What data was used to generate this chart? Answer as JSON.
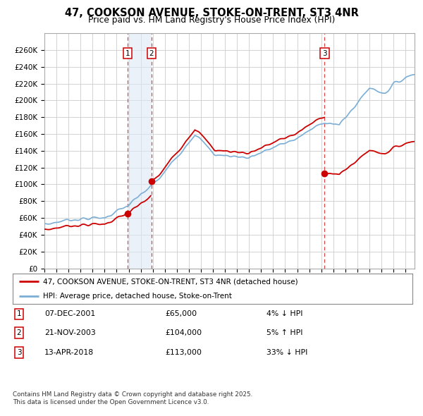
{
  "title": "47, COOKSON AVENUE, STOKE-ON-TRENT, ST3 4NR",
  "subtitle": "Price paid vs. HM Land Registry's House Price Index (HPI)",
  "ylim": [
    0,
    280000
  ],
  "yticks": [
    0,
    20000,
    40000,
    60000,
    80000,
    100000,
    120000,
    140000,
    160000,
    180000,
    200000,
    220000,
    240000,
    260000
  ],
  "ytick_labels": [
    "£0",
    "£20K",
    "£40K",
    "£60K",
    "£80K",
    "£100K",
    "£120K",
    "£140K",
    "£160K",
    "£180K",
    "£200K",
    "£220K",
    "£240K",
    "£260K"
  ],
  "house_color": "#cc0000",
  "hpi_color": "#7aaed6",
  "vline_color": "#dd4444",
  "sale1_date": 2001.92,
  "sale1_price": 65000,
  "sale2_date": 2003.89,
  "sale2_price": 104000,
  "sale3_date": 2018.28,
  "sale3_price": 113000,
  "xlim_start": 1995.0,
  "xlim_end": 2025.75,
  "legend_label1": "47, COOKSON AVENUE, STOKE-ON-TRENT, ST3 4NR (detached house)",
  "legend_label2": "HPI: Average price, detached house, Stoke-on-Trent",
  "table_rows": [
    {
      "num": "1",
      "date": "07-DEC-2001",
      "price": "£65,000",
      "change": "4% ↓ HPI"
    },
    {
      "num": "2",
      "date": "21-NOV-2003",
      "price": "£104,000",
      "change": "5% ↑ HPI"
    },
    {
      "num": "3",
      "date": "13-APR-2018",
      "price": "£113,000",
      "change": "33% ↓ HPI"
    }
  ],
  "footer": "Contains HM Land Registry data © Crown copyright and database right 2025.\nThis data is licensed under the Open Government Licence v3.0.",
  "bg": "#ffffff",
  "grid_color": "#cccccc",
  "span_color": "#dde8f5"
}
